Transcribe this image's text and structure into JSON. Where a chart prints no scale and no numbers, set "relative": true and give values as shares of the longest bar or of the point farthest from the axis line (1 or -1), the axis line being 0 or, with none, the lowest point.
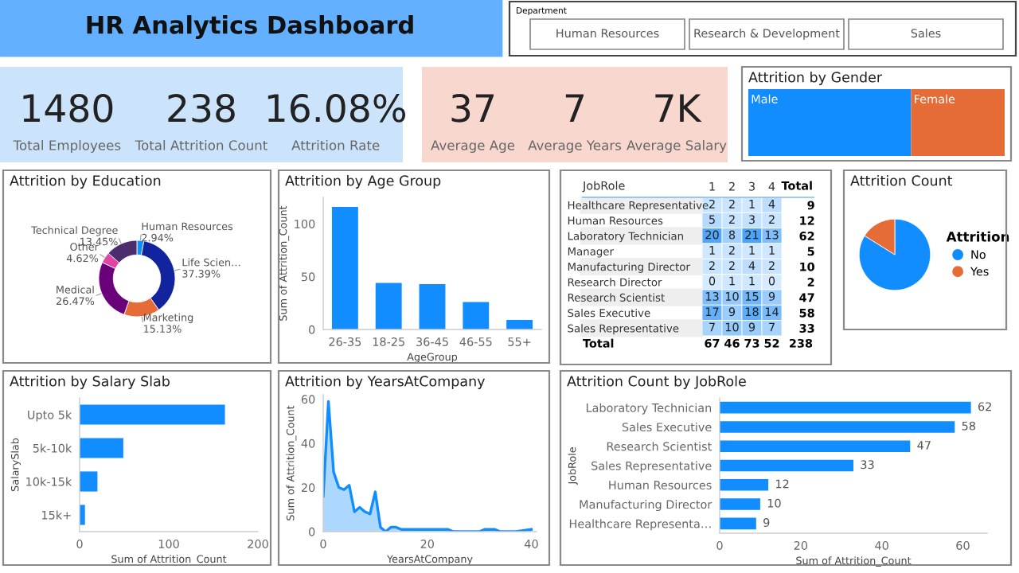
{
  "chart_data": [
    {
      "type": "other",
      "title": "HR Analytics Dashboard",
      "subtitle": "Department",
      "annotations": [
        "Human Resources",
        "Research & Development",
        "Sales"
      ]
    },
    {
      "type": "other",
      "annotations": [
        "1480",
        "Total Employees",
        "238",
        "Total Attrition Count",
        "16.08%",
        "Attrition Rate"
      ]
    },
    {
      "type": "other",
      "annotations": [
        "37",
        "Average Age",
        "7",
        "Average Years",
        "7K",
        "Average Salary"
      ]
    },
    {
      "type": "bar",
      "title": "Attrition by Gender",
      "orientation": "horizontal",
      "stacked": true,
      "relative": true,
      "categories": [
        null
      ],
      "series": [
        {
          "name": "Male",
          "color": "#118dff",
          "values": [
            0.635
          ]
        },
        {
          "name": "Female",
          "color": "#e66c37",
          "values": [
            0.365
          ]
        }
      ]
    },
    {
      "type": "donut",
      "title": "Attrition by Education",
      "categories": [
        "Human Resources",
        "Life Scien…",
        "Marketing",
        "Medical",
        "Other",
        "Technical Degree"
      ],
      "values": [
        2.94,
        37.39,
        15.13,
        26.47,
        4.62,
        13.45
      ],
      "value_labels": [
        "2.94%",
        "37.39%",
        "15.13%",
        "26.47%",
        "4.62%",
        "13.45%"
      ],
      "colors": [
        "#118dff",
        "#12239e",
        "#e66c37",
        "#6b007b",
        "#e044a7",
        "#4b2d6e"
      ]
    },
    {
      "type": "bar",
      "title": "Attrition by Age Group",
      "categories": [
        "26-35",
        "18-25",
        "36-45",
        "46-55",
        "55+"
      ],
      "values": [
        116,
        44,
        43,
        26,
        9
      ],
      "color": "#118dff",
      "xlabel": "AgeGroup",
      "ylabel": "Sum of Attrition_Count",
      "ylim": [
        0,
        125
      ],
      "yticks": [
        0,
        50,
        100
      ]
    },
    {
      "type": "heatmap",
      "data_labels": true,
      "ylabel": "JobRole",
      "y2label": "Total",
      "categories": [
        "1",
        "2",
        "3",
        "4"
      ],
      "y_categories": [
        "Healthcare Representative",
        "Human Resources",
        "Laboratory Technician",
        "Manager",
        "Manufacturing Director",
        "Research Director",
        "Research Scientist",
        "Sales Executive",
        "Sales Representative"
      ],
      "y2_categories": [
        "9",
        "12",
        "62",
        "5",
        "10",
        "2",
        "47",
        "58",
        "33"
      ],
      "annotations": [
        "Total",
        "67",
        "46",
        "73",
        "52",
        "238"
      ],
      "cells": [
        [
          2,
          2,
          1,
          4
        ],
        [
          5,
          2,
          3,
          2
        ],
        [
          20,
          8,
          21,
          13
        ],
        [
          1,
          2,
          1,
          1
        ],
        [
          2,
          2,
          4,
          2
        ],
        [
          0,
          1,
          1,
          0
        ],
        [
          13,
          10,
          15,
          9
        ],
        [
          17,
          9,
          18,
          14
        ],
        [
          7,
          10,
          9,
          7
        ]
      ]
    },
    {
      "type": "pie",
      "title": "Attrition Count",
      "categories": [
        "No",
        "Yes"
      ],
      "values": [
        83.92,
        16.08
      ],
      "colors": [
        "#118dff",
        "#e66c37"
      ],
      "legend": "right",
      "legend_title": "Attrition"
    },
    {
      "type": "bar",
      "title": "Attrition by Salary Slab",
      "orientation": "horizontal",
      "categories": [
        "Upto 5k",
        "5k-10k",
        "10k-15k",
        "15k+"
      ],
      "values": [
        163,
        49,
        20,
        6
      ],
      "color": "#118dff",
      "xlabel": "Sum of Attrition_Count",
      "ylabel": "SalarySlab",
      "xlim": [
        0,
        200
      ],
      "xticks": [
        0,
        100,
        200
      ]
    },
    {
      "type": "area",
      "title": "Attrition by YearsAtCompany",
      "x": [
        0,
        1,
        2,
        3,
        4,
        5,
        6,
        7,
        8,
        9,
        10,
        11,
        12,
        13,
        14,
        15,
        16,
        17,
        18,
        19,
        20,
        21,
        22,
        23,
        24,
        25,
        26,
        27,
        29,
        30,
        31,
        32,
        33,
        34,
        36,
        37,
        40
      ],
      "values": [
        16,
        59,
        27,
        20,
        19,
        21,
        9,
        11,
        9,
        8,
        18,
        2,
        0,
        2,
        2,
        1,
        1,
        1,
        1,
        1,
        1,
        1,
        1,
        1,
        1,
        0,
        0,
        0,
        0,
        0,
        1,
        1,
        1,
        0,
        0,
        0,
        1
      ],
      "color": "#118dff",
      "xlabel": "YearsAtCompany",
      "ylabel": "Sum of Attrition_Count",
      "xlim": [
        0,
        41
      ],
      "xticks": [
        0,
        20,
        40
      ],
      "ylim": [
        0,
        62
      ],
      "yticks": [
        0,
        20,
        40,
        60
      ]
    },
    {
      "type": "bar",
      "title": "Attrition Count by JobRole",
      "orientation": "horizontal",
      "categories": [
        "Laboratory Technician",
        "Sales Executive",
        "Research Scientist",
        "Sales Representative",
        "Human Resources",
        "Manufacturing Director",
        "Healthcare Representa…"
      ],
      "values": [
        62,
        58,
        47,
        33,
        12,
        10,
        9
      ],
      "color": "#118dff",
      "data_labels": true,
      "xlabel": "Sum of Attrition_Count",
      "ylabel": "JobRole",
      "xlim": [
        0,
        66
      ],
      "xticks": [
        0,
        20,
        40,
        60
      ]
    }
  ]
}
